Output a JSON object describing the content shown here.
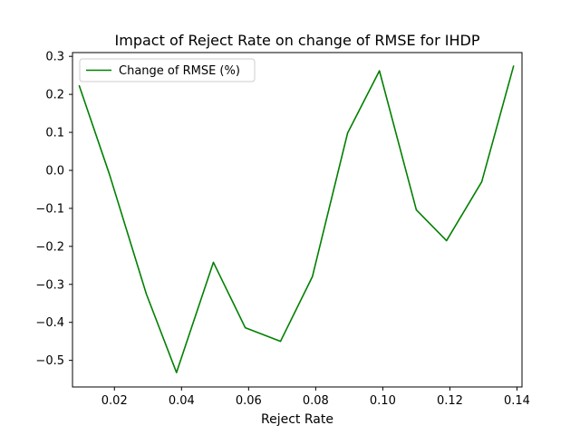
{
  "chart_data": {
    "type": "line",
    "title": "Impact of Reject Rate on change of RMSE for IHDP",
    "xlabel": "Reject Rate",
    "ylabel": "",
    "xlim": [
      0.0075,
      0.1415
    ],
    "ylim": [
      -0.57,
      0.31
    ],
    "xticks": [
      0.02,
      0.04,
      0.06,
      0.08,
      0.1,
      0.12,
      0.14
    ],
    "xtick_labels": [
      "0.02",
      "0.04",
      "0.06",
      "0.08",
      "0.10",
      "0.12",
      "0.14"
    ],
    "yticks": [
      -0.5,
      -0.4,
      -0.3,
      -0.2,
      -0.1,
      0.0,
      0.1,
      0.2,
      0.3
    ],
    "ytick_labels": [
      "−0.5",
      "−0.4",
      "−0.3",
      "−0.2",
      "−0.1",
      "0.0",
      "0.1",
      "0.2",
      "0.3"
    ],
    "grid": false,
    "legend": "upper-left",
    "series": [
      {
        "name": "Change of RMSE (%)",
        "color": "#008000",
        "x": [
          0.0095,
          0.0185,
          0.0295,
          0.0385,
          0.0495,
          0.059,
          0.0695,
          0.079,
          0.0895,
          0.099,
          0.11,
          0.119,
          0.1295,
          0.139
        ],
        "y": [
          0.223,
          -0.01,
          -0.325,
          -0.532,
          -0.242,
          -0.414,
          -0.45,
          -0.28,
          0.098,
          0.262,
          -0.104,
          -0.185,
          -0.03,
          0.275
        ]
      }
    ]
  }
}
